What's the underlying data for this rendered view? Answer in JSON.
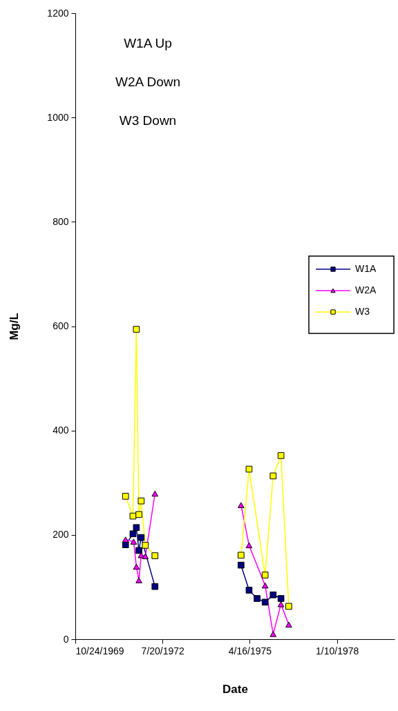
{
  "chart_data": {
    "type": "line",
    "xlabel": "Date",
    "ylabel": "Mg/L",
    "annotations": [
      "W1A Up",
      "W2A Down",
      "W3 Down"
    ],
    "xlim": [
      "1969-10-24",
      "1979-11-01"
    ],
    "xticks": [
      {
        "value": "1969-10-24",
        "label": "10/24/1969"
      },
      {
        "value": "1972-07-20",
        "label": "7/20/1972"
      },
      {
        "value": "1975-04-16",
        "label": "4/16/1975"
      },
      {
        "value": "1978-01-10",
        "label": "1/10/1978"
      }
    ],
    "ylim": [
      0,
      1200
    ],
    "yticks": [
      0,
      200,
      400,
      600,
      800,
      1000,
      1200
    ],
    "grid": false,
    "legend": "right",
    "series": [
      {
        "name": "W1A",
        "color": "#000080",
        "marker": "square",
        "x": [
          "1971-05-23",
          "1971-08-16",
          "1971-09-24",
          "1971-10-23",
          "1971-11-18",
          "1972-04-24",
          "1973-09-01",
          "1975-01-06",
          "1975-04-08",
          "1975-07-09",
          "1975-10-09",
          "1976-01-09",
          "1976-04-08"
        ],
        "values": [
          181,
          202,
          214,
          170,
          195,
          101,
          null,
          142,
          94,
          78,
          71,
          85,
          78
        ]
      },
      {
        "name": "W2A",
        "color": "#ff00ff",
        "marker": "triangle",
        "x": [
          "1971-05-23",
          "1971-08-24",
          "1971-09-24",
          "1971-10-23",
          "1971-11-18",
          "1972-01-05",
          "1972-04-24",
          "1973-09-01",
          "1975-01-06",
          "1975-04-08",
          "1975-10-09",
          "1976-01-09",
          "1976-04-08",
          "1976-07-06"
        ],
        "values": [
          191,
          187,
          139,
          113,
          161,
          159,
          279,
          null,
          257,
          180,
          103,
          10,
          67,
          28
        ]
      },
      {
        "name": "W3",
        "color": "#ffff00",
        "marker": "square",
        "x": [
          "1971-05-23",
          "1971-08-16",
          "1971-09-24",
          "1971-10-23",
          "1971-11-18",
          "1972-01-05",
          "1972-04-24",
          "1973-09-01",
          "1975-01-06",
          "1975-04-08",
          "1975-10-09",
          "1976-01-09",
          "1976-04-08",
          "1976-07-06"
        ],
        "values": [
          274,
          236,
          594,
          239,
          265,
          180,
          160,
          null,
          161,
          326,
          123,
          313,
          352,
          63
        ]
      }
    ]
  }
}
